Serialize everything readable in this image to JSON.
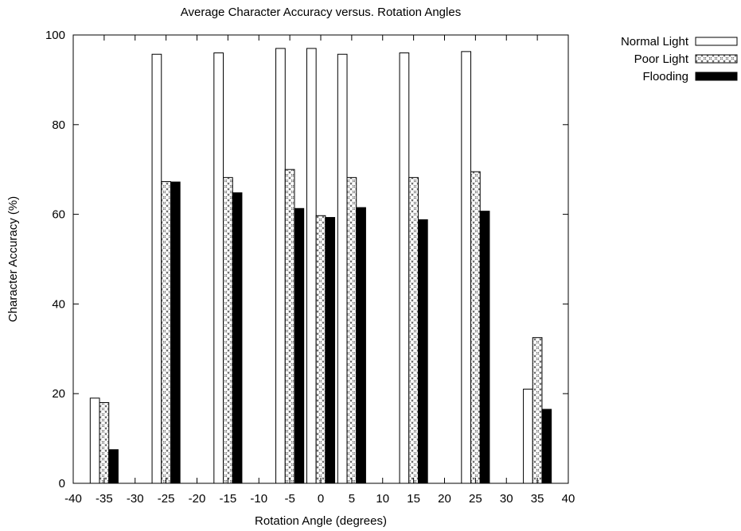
{
  "chart_data": {
    "type": "bar",
    "title": "Average Character Accuracy versus. Rotation Angles",
    "xlabel": "Rotation Angle (degrees)",
    "ylabel": "Character Accuracy (%)",
    "xlim": [
      -40,
      40
    ],
    "ylim": [
      0,
      100
    ],
    "xticks": [
      -40,
      -35,
      -30,
      -25,
      -20,
      -15,
      -10,
      -5,
      0,
      5,
      10,
      15,
      20,
      25,
      30,
      35,
      40
    ],
    "yticks": [
      0,
      20,
      40,
      60,
      80,
      100
    ],
    "grid": false,
    "legend_position": "outside-top-right",
    "x": [
      -35,
      -25,
      -15,
      -5,
      0,
      5,
      15,
      25,
      35
    ],
    "series": [
      {
        "name": "Normal Light",
        "pattern": "empty",
        "values": [
          19,
          95.7,
          96,
          97,
          97,
          95.7,
          96,
          96.3,
          21
        ]
      },
      {
        "name": "Poor Light",
        "pattern": "crosshatch",
        "values": [
          18,
          67.3,
          68.2,
          70,
          59.7,
          68.2,
          68.2,
          69.5,
          32.5
        ]
      },
      {
        "name": "Flooding",
        "pattern": "solid",
        "values": [
          7.5,
          67.2,
          64.8,
          61.3,
          59.3,
          61.5,
          58.8,
          60.7,
          16.5
        ]
      }
    ],
    "colors": {
      "frame": "#000000",
      "fill_solid": "#000000",
      "fill_empty": "#ffffff",
      "hatch": "#555555"
    }
  }
}
